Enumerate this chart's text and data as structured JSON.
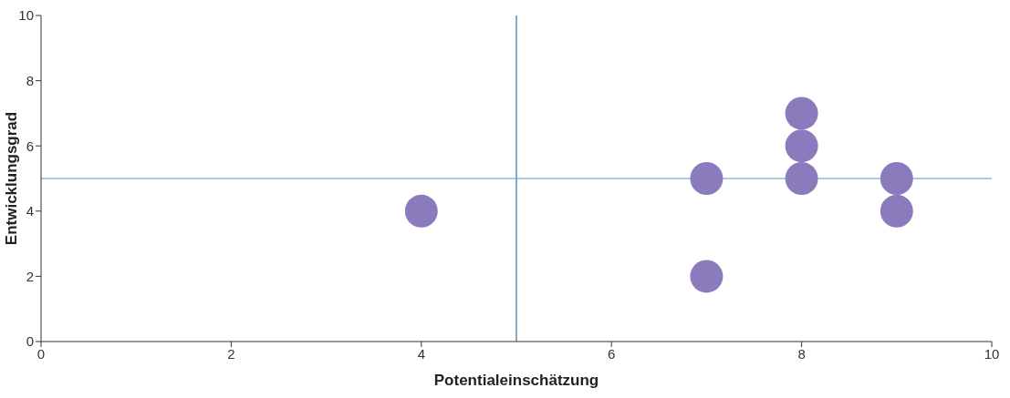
{
  "chart_data": {
    "type": "scatter",
    "xlabel": "Potentialeinschätzung",
    "ylabel": "Entwicklungsgrad",
    "x": [
      4,
      7,
      7,
      8,
      8,
      8,
      9,
      9
    ],
    "series": [
      {
        "color": "#8b7bbd",
        "values": [
          4,
          5,
          2,
          7,
          6,
          5,
          5,
          4
        ]
      }
    ],
    "xlim": [
      0,
      10
    ],
    "xticks": [
      0,
      2,
      4,
      6,
      8,
      10
    ],
    "ylim": [
      0,
      10
    ],
    "yticks": [
      0,
      2,
      4,
      6,
      8,
      10
    ],
    "ref_lines": [
      {
        "axis": "x",
        "value": 5,
        "color": "#2f6fa8"
      },
      {
        "axis": "y",
        "value": 5,
        "color": "#4a9bd6"
      }
    ],
    "grid": false,
    "legend": false,
    "marker": "circle"
  }
}
